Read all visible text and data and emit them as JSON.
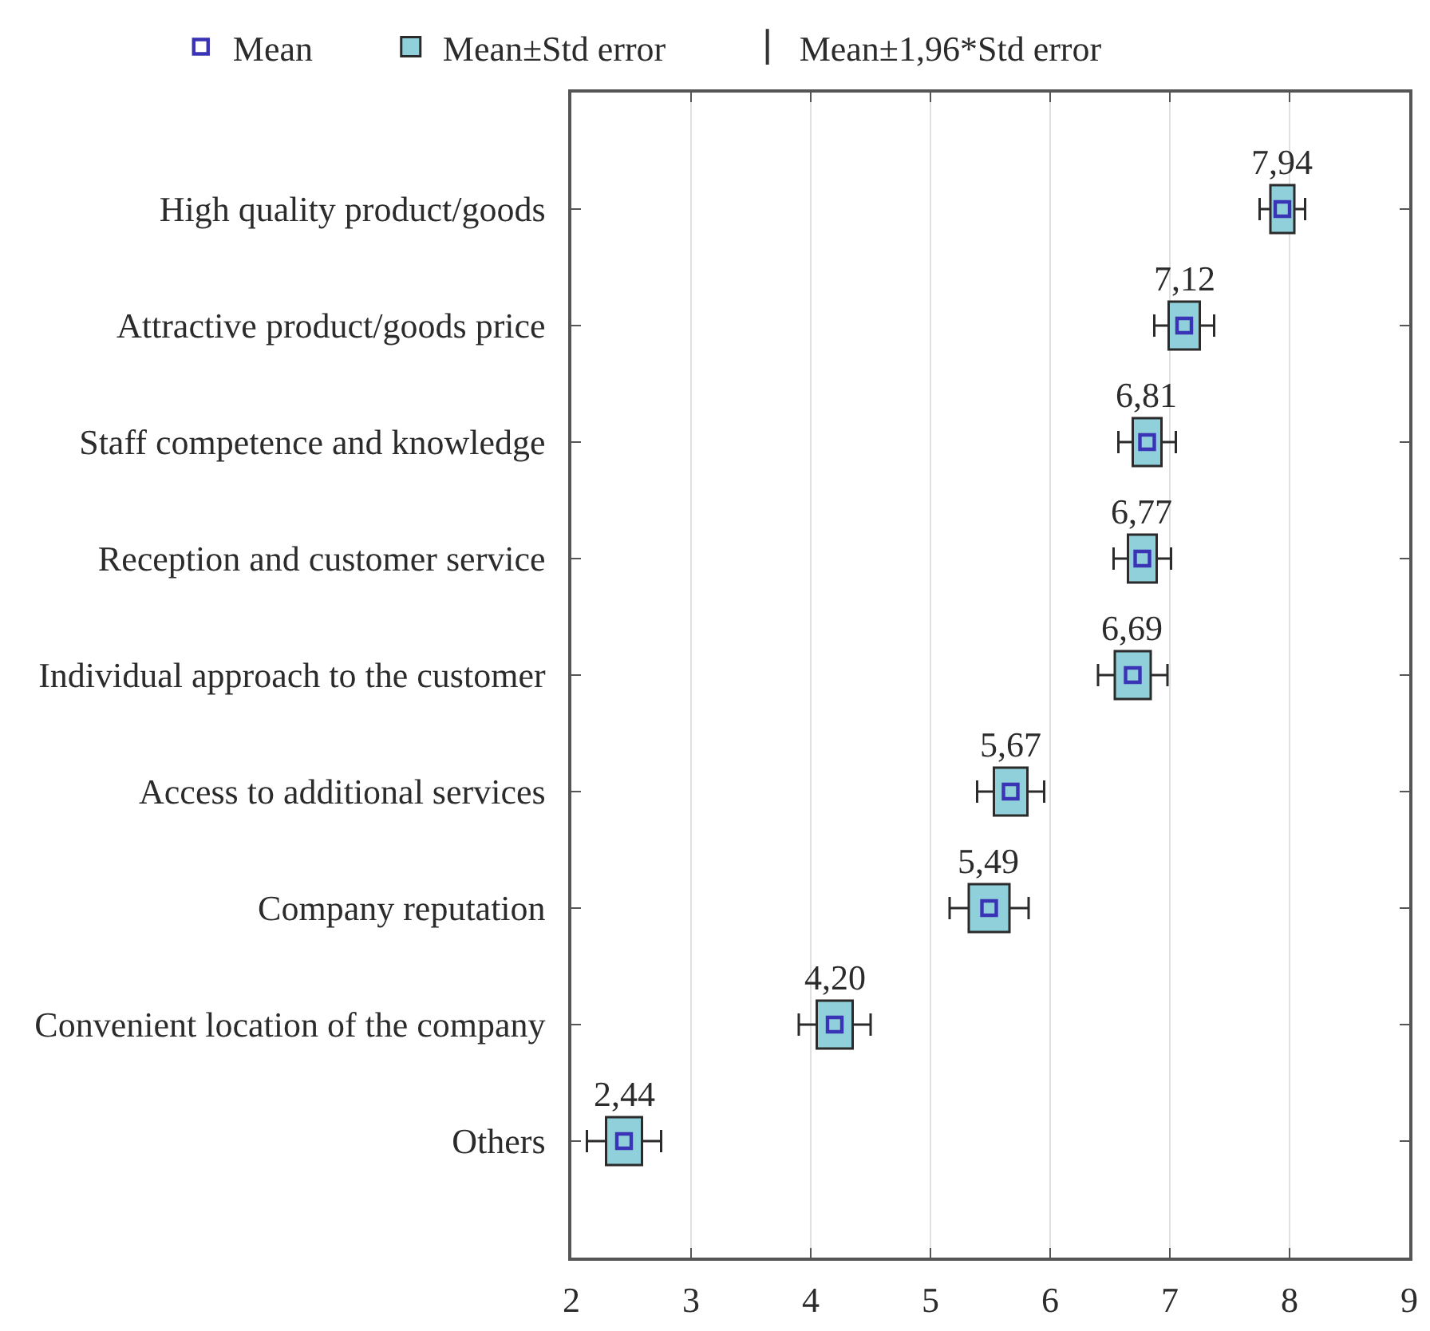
{
  "chart_data": {
    "type": "bar",
    "orientation": "horizontal",
    "categories": [
      "High quality product/goods",
      "Attractive product/goods price",
      "Staff competence and knowledge",
      "Reception and customer service",
      "Individual approach to the customer",
      "Access to additional services",
      "Company reputation",
      "Convenient location of the company",
      "Others"
    ],
    "series": [
      {
        "name": "Mean",
        "type": "scatter",
        "marker": "square",
        "color": "#3a33b5",
        "values": [
          7.94,
          7.12,
          6.81,
          6.77,
          6.69,
          5.67,
          5.49,
          4.2,
          2.44
        ],
        "value_labels": [
          "7,94",
          "7,12",
          "6,81",
          "6,77",
          "6,69",
          "5,67",
          "5,49",
          "4,20",
          "2,44"
        ],
        "errors": [
          0.19,
          0.25,
          0.24,
          0.24,
          0.29,
          0.28,
          0.33,
          0.3,
          0.31
        ]
      },
      {
        "name": "Mean±Std error",
        "color": "#8fd0da",
        "base": [
          7.84,
          6.99,
          6.69,
          6.65,
          6.54,
          5.53,
          5.32,
          4.05,
          2.29
        ],
        "values": [
          0.2,
          0.26,
          0.24,
          0.24,
          0.3,
          0.28,
          0.34,
          0.3,
          0.3
        ]
      },
      {
        "name": "Mean±1,96*Std error",
        "type": "scatter",
        "marker": "none",
        "color": "#333333",
        "values": [
          null,
          null,
          null,
          null,
          null,
          null,
          null,
          null,
          null
        ]
      }
    ],
    "xlim": [
      2,
      9
    ],
    "xticks": [
      2,
      3,
      4,
      5,
      6,
      7,
      8,
      9
    ],
    "grid": "x",
    "legend": "top"
  }
}
